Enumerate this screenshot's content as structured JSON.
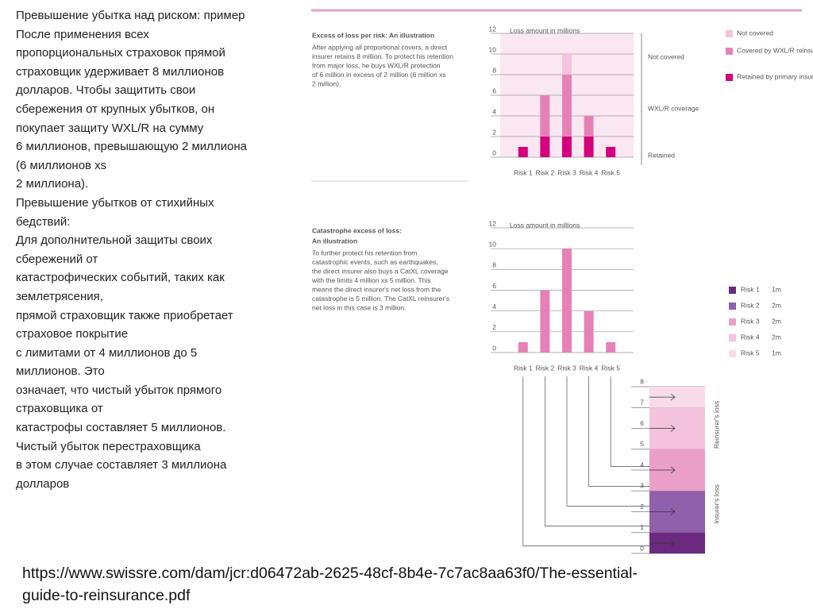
{
  "slide_text": [
    "Превышение убытка над риском: пример",
    "После применения всех",
    "пропорциональных страховок прямой",
    "страховщик удерживает 8 миллионов",
    "долларов. Чтобы защитить свои",
    "сбережения от крупных убытков, он",
    "покупает защиту WXL/R на сумму",
    "6 миллионов, превышающую 2 миллиона",
    "(6 миллионов xs",
    "2 миллиона).",
    "Превышение убытков от стихийных",
    "бедствий:",
    "Для дополнительной защиты своих",
    "сбережений от",
    "катастрофических событий, таких как",
    "землетрясения,",
    "прямой страховщик также приобретает",
    "страховое покрытие",
    "с лимитами от 4 миллионов до 5",
    "миллионов. Это",
    "означает, что чистый убыток прямого",
    "страховщика от",
    "катастрофы составляет 5 миллионов.",
    "Чистый убыток перестраховщика",
    "в этом случае составляет 3 миллиона",
    "долларов"
  ],
  "source": [
    "https://www.swissre.com/dam/jcr:d06472ab-2625-48cf-8b4e-7c7ac8aa63f0/The-essential-",
    "guide-to-reinsurance.pdf"
  ],
  "chart_data": [
    {
      "type": "stacked_bar",
      "title": "Excess of loss per risk: An illustration",
      "description": [
        "After applying all proportional covers, a direct",
        "insurer retains 8 million. To protect his retention",
        "from major loss, he buys WXL/R protection",
        "of 6 million in excess of 2 million (6 million xs",
        "2 million)."
      ],
      "y_label": "Loss amount in millions",
      "categories": [
        "Risk 1",
        "Risk 2",
        "Risk 3",
        "Risk 4",
        "Risk 5"
      ],
      "series": [
        {
          "name": "Retained by primary insurers",
          "color": "#d4007c",
          "values": [
            1,
            2,
            2,
            2,
            1
          ]
        },
        {
          "name": "Covered by WXL/R reinsurer",
          "color": "#e681b8",
          "values": [
            0,
            4,
            6,
            2,
            0
          ]
        },
        {
          "name": "Not covered",
          "color": "#f5c3dd",
          "values": [
            0,
            0,
            2,
            0,
            0
          ]
        }
      ],
      "band_labels": [
        "Not covered",
        "WXL/R coverage",
        "Retained"
      ],
      "ylim": [
        0,
        12
      ],
      "yticks": [
        0,
        2,
        4,
        6,
        8,
        10,
        12
      ],
      "grid": true
    },
    {
      "type": "bar",
      "title": "Catastrophe excess of loss:",
      "subtitle": "An illustration",
      "description": [
        "To further protect his retention from",
        "catastrophic events, such as earthquakes,",
        "the direct insurer also buys a CatXL coverage",
        "with the limits 4 million xs 5 million. This",
        "means the direct insurer's net loss from the",
        "catastrophe is 5 million. The CatXL reinsurer's",
        "net loss in this case is 3 million."
      ],
      "y_label": "Loss amount in millions",
      "categories": [
        "Risk 1",
        "Risk 2",
        "Risk 3",
        "Risk 4",
        "Risk 5"
      ],
      "values": [
        1,
        6,
        10,
        4,
        1
      ],
      "color": "#e681b8",
      "ylim": [
        0,
        12
      ],
      "yticks": [
        0,
        2,
        4,
        6,
        8,
        10,
        12
      ],
      "grid": true
    },
    {
      "type": "layer_column",
      "series": [
        {
          "name": "Risk 1",
          "value_labels": [
            "1m"
          ],
          "values": [
            1
          ],
          "color": "#6b2a80"
        },
        {
          "name": "Risk 2",
          "value_labels": [
            "2m"
          ],
          "values": [
            2
          ],
          "color": "#9060ac"
        },
        {
          "name": "Risk 3",
          "value_labels": [
            "2m"
          ],
          "values": [
            2
          ],
          "color": "#ea9fc8"
        },
        {
          "name": "Risk 4",
          "value_labels": [
            "2m"
          ],
          "values": [
            2
          ],
          "color": "#f3c3dc"
        },
        {
          "name": "Risk 5",
          "value_labels": [
            "1m"
          ],
          "values": [
            1
          ],
          "color": "#f8dcea"
        }
      ],
      "band_labels": [
        "Reinsurer's loss",
        "Insurer's loss"
      ],
      "ylim": [
        0,
        8
      ],
      "yticks": [
        0,
        1,
        2,
        3,
        4,
        5,
        6,
        7,
        8
      ],
      "grid": true
    }
  ]
}
